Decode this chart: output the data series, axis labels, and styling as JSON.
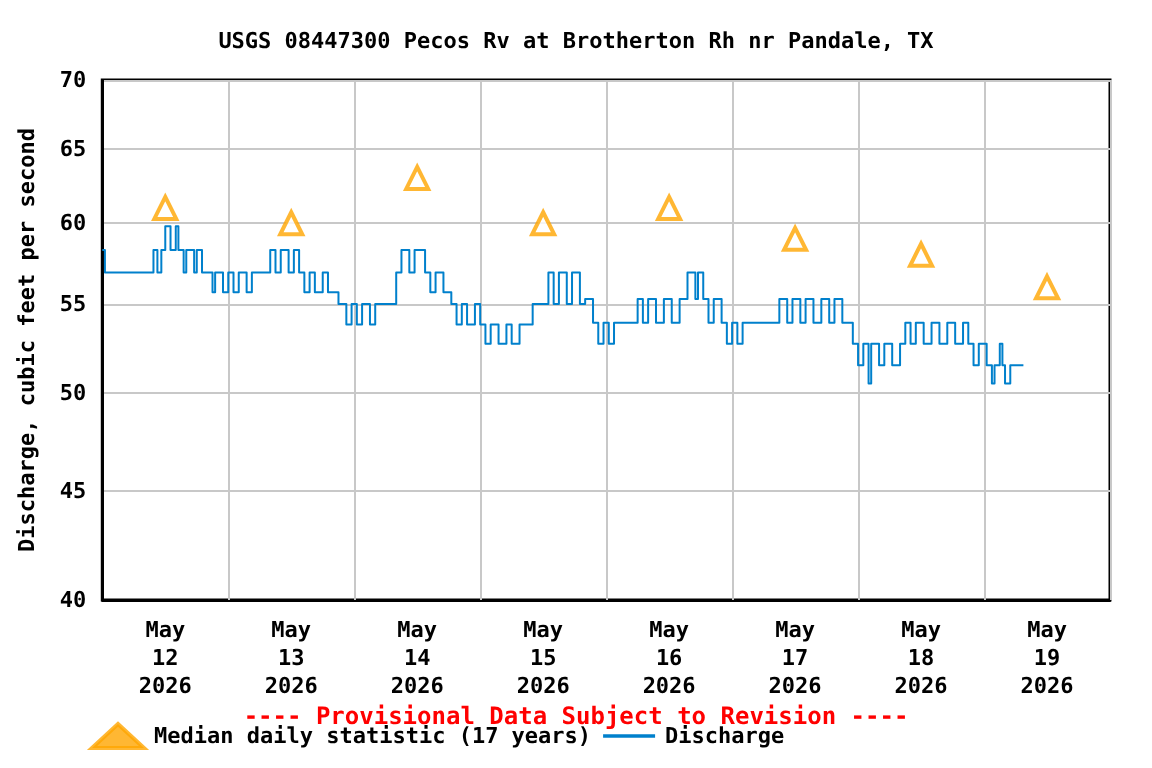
{
  "chart_data": {
    "type": "step",
    "title": "USGS 08447300 Pecos Rv at Brotherton Rh nr Pandale, TX",
    "ylabel": "Discharge, cubic feet per second",
    "log": "y",
    "ylim": [
      40,
      70
    ],
    "yticks": [
      40,
      45,
      50,
      55,
      60,
      65,
      70
    ],
    "xlim": [
      "2026-05-12T00:00",
      "2026-05-20T00:00"
    ],
    "xticks": [
      {
        "value": "2026-05-12T00:00",
        "label": null
      },
      {
        "value": "2026-05-12T12:00",
        "label": "May\n12\n2026"
      },
      {
        "value": "2026-05-13T00:00",
        "label": null
      },
      {
        "value": "2026-05-13T12:00",
        "label": "May\n13\n2026"
      },
      {
        "value": "2026-05-14T00:00",
        "label": null
      },
      {
        "value": "2026-05-14T12:00",
        "label": "May\n14\n2026"
      },
      {
        "value": "2026-05-15T00:00",
        "label": null
      },
      {
        "value": "2026-05-15T12:00",
        "label": "May\n15\n2026"
      },
      {
        "value": "2026-05-16T00:00",
        "label": null
      },
      {
        "value": "2026-05-16T12:00",
        "label": "May\n16\n2026"
      },
      {
        "value": "2026-05-17T00:00",
        "label": null
      },
      {
        "value": "2026-05-17T12:00",
        "label": "May\n17\n2026"
      },
      {
        "value": "2026-05-18T00:00",
        "label": null
      },
      {
        "value": "2026-05-18T12:00",
        "label": "May\n18\n2026"
      },
      {
        "value": "2026-05-19T00:00",
        "label": null
      },
      {
        "value": "2026-05-19T12:00",
        "label": "May\n19\n2026"
      },
      {
        "value": "2026-05-20T00:00",
        "label": null
      }
    ],
    "grid": true,
    "legend": "bottom",
    "annotations": [
      "---- Provisional Data Subject to Revision ----"
    ],
    "series": [
      {
        "name": "Median daily statistic (17 years)",
        "type": "scatter",
        "marker": "triangle",
        "color": "#ffa500",
        "x": [
          "2026-05-12T12:00",
          "2026-05-13T12:00",
          "2026-05-14T12:00",
          "2026-05-15T12:00",
          "2026-05-16T12:00",
          "2026-05-17T12:00",
          "2026-05-18T12:00",
          "2026-05-19T12:00"
        ],
        "values": [
          61,
          60,
          63,
          60,
          61,
          59,
          58,
          56
        ]
      },
      {
        "name": "Discharge",
        "color": "#0080cc",
        "x": [
          "2026-05-12T00:00",
          "2026-05-12T00:30",
          "2026-05-12T09:45",
          "2026-05-12T10:30",
          "2026-05-12T11:15",
          "2026-05-12T12:00",
          "2026-05-12T13:00",
          "2026-05-12T14:00",
          "2026-05-12T14:30",
          "2026-05-12T15:30",
          "2026-05-12T16:00",
          "2026-05-12T17:30",
          "2026-05-12T18:00",
          "2026-05-12T19:00",
          "2026-05-12T21:00",
          "2026-05-12T21:30",
          "2026-05-12T23:00",
          "2026-05-13T00:00",
          "2026-05-13T01:00",
          "2026-05-13T02:00",
          "2026-05-13T03:30",
          "2026-05-13T04:30",
          "2026-05-13T05:30",
          "2026-05-13T08:00",
          "2026-05-13T09:00",
          "2026-05-13T10:00",
          "2026-05-13T11:30",
          "2026-05-13T12:30",
          "2026-05-13T13:30",
          "2026-05-13T14:30",
          "2026-05-13T15:30",
          "2026-05-13T16:30",
          "2026-05-13T18:00",
          "2026-05-13T19:00",
          "2026-05-13T21:00",
          "2026-05-13T22:30",
          "2026-05-13T23:30",
          "2026-05-14T00:30",
          "2026-05-14T01:30",
          "2026-05-14T03:00",
          "2026-05-14T04:00",
          "2026-05-14T08:00",
          "2026-05-14T09:00",
          "2026-05-14T10:30",
          "2026-05-14T11:30",
          "2026-05-14T13:30",
          "2026-05-14T14:30",
          "2026-05-14T15:30",
          "2026-05-14T17:00",
          "2026-05-14T18:30",
          "2026-05-14T19:30",
          "2026-05-14T20:30",
          "2026-05-14T21:30",
          "2026-05-14T23:00",
          "2026-05-15T00:00",
          "2026-05-15T01:00",
          "2026-05-15T02:00",
          "2026-05-15T03:30",
          "2026-05-15T05:00",
          "2026-05-15T06:00",
          "2026-05-15T07:30",
          "2026-05-15T10:00",
          "2026-05-15T13:00",
          "2026-05-15T14:00",
          "2026-05-15T15:00",
          "2026-05-15T16:30",
          "2026-05-15T17:30",
          "2026-05-15T19:00",
          "2026-05-15T20:00",
          "2026-05-15T21:30",
          "2026-05-15T22:30",
          "2026-05-15T23:30",
          "2026-05-16T00:30",
          "2026-05-16T01:30",
          "2026-05-16T04:00",
          "2026-05-16T06:00",
          "2026-05-16T07:00",
          "2026-05-16T08:00",
          "2026-05-16T09:30",
          "2026-05-16T11:00",
          "2026-05-16T12:30",
          "2026-05-16T14:00",
          "2026-05-16T15:30",
          "2026-05-16T17:00",
          "2026-05-16T17:30",
          "2026-05-16T18:30",
          "2026-05-16T19:30",
          "2026-05-16T20:30",
          "2026-05-16T22:00",
          "2026-05-16T23:00",
          "2026-05-17T00:00",
          "2026-05-17T01:00",
          "2026-05-17T02:00",
          "2026-05-17T09:00",
          "2026-05-17T10:30",
          "2026-05-17T11:30",
          "2026-05-17T13:00",
          "2026-05-17T14:00",
          "2026-05-17T15:30",
          "2026-05-17T17:00",
          "2026-05-17T18:30",
          "2026-05-17T19:30",
          "2026-05-17T21:00",
          "2026-05-17T23:00",
          "2026-05-18T00:00",
          "2026-05-18T01:00",
          "2026-05-18T02:00",
          "2026-05-18T02:30",
          "2026-05-18T04:00",
          "2026-05-18T05:00",
          "2026-05-18T06:30",
          "2026-05-18T08:00",
          "2026-05-18T09:00",
          "2026-05-18T10:00",
          "2026-05-18T11:00",
          "2026-05-18T12:30",
          "2026-05-18T14:00",
          "2026-05-18T15:30",
          "2026-05-18T17:00",
          "2026-05-18T18:30",
          "2026-05-18T20:00",
          "2026-05-18T21:00",
          "2026-05-18T22:00",
          "2026-05-18T23:00",
          "2026-05-19T00:30",
          "2026-05-19T01:30",
          "2026-05-19T02:00",
          "2026-05-19T03:00",
          "2026-05-19T03:30",
          "2026-05-19T04:00",
          "2026-05-19T05:00",
          "2026-05-19T07:30"
        ],
        "values": [
          58.3,
          56.9,
          58.3,
          56.9,
          58.3,
          59.8,
          58.3,
          59.8,
          58.3,
          56.9,
          58.3,
          56.9,
          58.3,
          56.9,
          55.7,
          56.9,
          55.7,
          56.9,
          55.7,
          56.9,
          55.7,
          56.9,
          56.9,
          58.3,
          56.9,
          58.3,
          56.9,
          58.3,
          56.9,
          55.7,
          56.9,
          55.7,
          56.9,
          55.7,
          55.0,
          53.8,
          55.0,
          53.8,
          55.0,
          53.8,
          55.0,
          56.9,
          58.3,
          56.9,
          58.3,
          56.9,
          55.7,
          56.9,
          55.7,
          55.0,
          53.8,
          55.0,
          53.8,
          55.0,
          53.8,
          52.7,
          53.8,
          52.7,
          53.8,
          52.7,
          53.8,
          55.0,
          56.9,
          55.0,
          56.9,
          55.0,
          56.9,
          55.0,
          55.3,
          53.9,
          52.7,
          53.9,
          52.7,
          53.9,
          53.9,
          55.3,
          53.9,
          55.3,
          53.9,
          55.3,
          53.9,
          55.3,
          56.9,
          55.3,
          56.9,
          55.3,
          53.9,
          55.3,
          53.9,
          52.7,
          53.9,
          52.7,
          53.9,
          55.3,
          53.9,
          55.3,
          53.9,
          55.3,
          53.9,
          55.3,
          53.9,
          55.3,
          53.9,
          52.7,
          51.5,
          52.7,
          50.5,
          52.7,
          51.5,
          52.7,
          51.5,
          52.7,
          53.9,
          52.7,
          53.9,
          52.7,
          53.9,
          52.7,
          53.9,
          52.7,
          53.9,
          52.7,
          51.5,
          52.7,
          51.5,
          50.5,
          51.5,
          52.7,
          51.5,
          50.5,
          51.5,
          51.5
        ]
      }
    ]
  }
}
